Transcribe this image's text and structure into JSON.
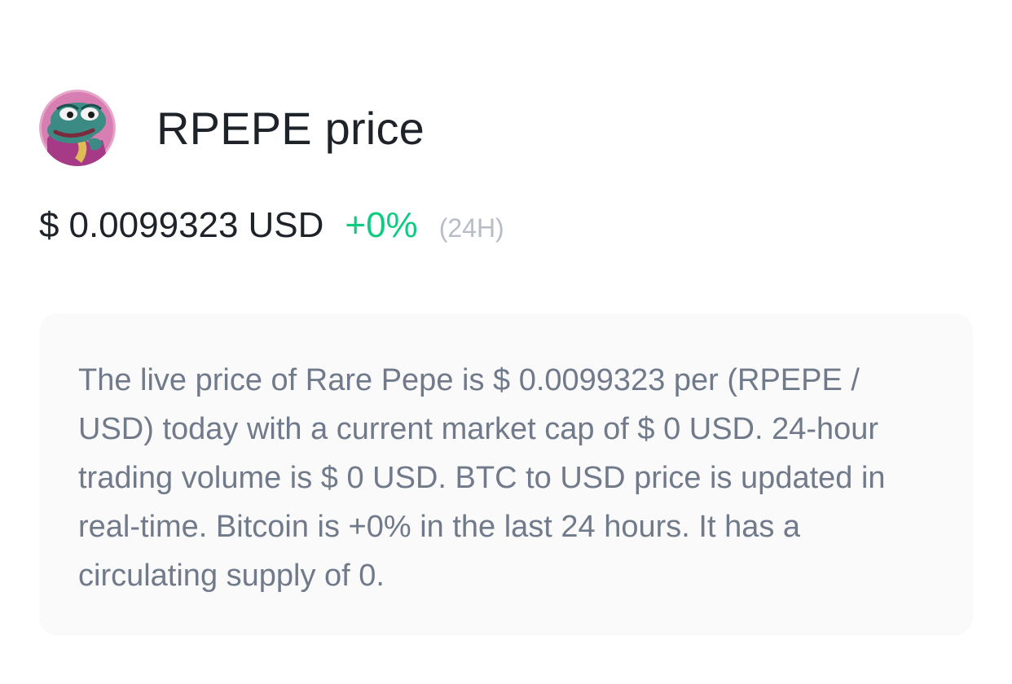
{
  "header": {
    "avatar_icon": "rare-pepe-frog-icon",
    "title": "RPEPE price"
  },
  "price": {
    "currency_symbol": "$",
    "value": "0.0099323",
    "unit": "USD",
    "change_24h": "+0%",
    "period_label": "(24H)"
  },
  "colors": {
    "positive_change": "#0ecb81",
    "primary_text": "#1e2329",
    "secondary_text": "#707a8a",
    "muted_text": "#b7bdc6",
    "card_background": "#fafafa"
  },
  "description": {
    "text": "The live price of Rare Pepe is $ 0.0099323 per (RPEPE / USD) today with a current market cap of $ 0 USD. 24-hour trading volume is $ 0 USD. BTC to USD price is updated in real-time. Bitcoin is +0% in the last 24 hours. It has a circulating supply of 0."
  }
}
